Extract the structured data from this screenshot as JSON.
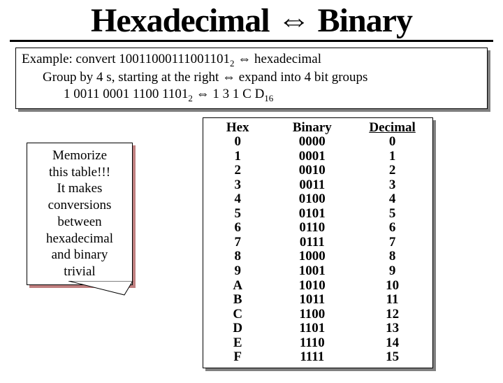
{
  "title_left": "Hexadecimal",
  "title_arrow": "⇔",
  "title_right": "Binary",
  "example": {
    "line1_a": "Example: convert 10011000111001101",
    "line1_sub": "2",
    "line1_b": " ⇔  hexadecimal",
    "line2": "Group by 4 s, starting at the right ⇔ expand into 4 bit groups",
    "line3_a": "1 0011 0001 1100 1101",
    "line3_sub1": "2",
    "line3_b": " ⇔ 1 3 1 C D",
    "line3_sub2": "16"
  },
  "callout": {
    "l1": "Memorize",
    "l2": "this table!!!",
    "l3": "It makes",
    "l4": "conversions",
    "l5": "between",
    "l6": "hexadecimal",
    "l7": "and binary",
    "l8": "trivial"
  },
  "table": {
    "headers": {
      "hex": "Hex",
      "bin": "Binary",
      "dec": "Decimal"
    },
    "rows": [
      {
        "hex": "0",
        "bin": "0000",
        "dec": "0"
      },
      {
        "hex": "1",
        "bin": "0001",
        "dec": "1"
      },
      {
        "hex": "2",
        "bin": "0010",
        "dec": "2"
      },
      {
        "hex": "3",
        "bin": "0011",
        "dec": "3"
      },
      {
        "hex": "4",
        "bin": "0100",
        "dec": "4"
      },
      {
        "hex": "5",
        "bin": "0101",
        "dec": "5"
      },
      {
        "hex": "6",
        "bin": "0110",
        "dec": "6"
      },
      {
        "hex": "7",
        "bin": "0111",
        "dec": "7"
      },
      {
        "hex": "8",
        "bin": "1000",
        "dec": "8"
      },
      {
        "hex": "9",
        "bin": "1001",
        "dec": "9"
      },
      {
        "hex": "A",
        "bin": "1010",
        "dec": "10"
      },
      {
        "hex": "B",
        "bin": "1011",
        "dec": "11"
      },
      {
        "hex": "C",
        "bin": "1100",
        "dec": "12"
      },
      {
        "hex": "D",
        "bin": "1101",
        "dec": "13"
      },
      {
        "hex": "E",
        "bin": "1110",
        "dec": "14"
      },
      {
        "hex": "F",
        "bin": "1111",
        "dec": "15"
      }
    ]
  },
  "colors": {
    "box_shadow": "#808080",
    "callout_shadow": "#c08080",
    "border": "#000000",
    "bg": "#ffffff"
  }
}
